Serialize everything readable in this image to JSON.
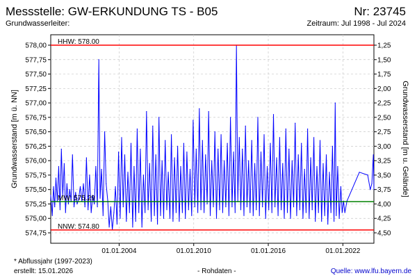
{
  "header": {
    "title": "Messstelle: GW-ERKUNDUNG TS - B05",
    "number": "Nr: 23745",
    "aquifer_label": "Grundwasserleiter:",
    "period": "Zeitraum: Jul 1998 - Jul 2024"
  },
  "footer": {
    "note": "* Abflussjahr (1997-2023)",
    "created": "erstellt:  15.01.2026",
    "raw": "- Rohdaten -",
    "source": "Quelle: www.lfu.bayern.de"
  },
  "colors": {
    "series": "#0000ff",
    "hhw": "#ff0000",
    "nnw": "#ff0000",
    "mw": "#008000",
    "grid": "#c8c8c8"
  },
  "chart_data": {
    "type": "line",
    "ylabel": "Grundwasserstand [m ü. NN]",
    "ylabel_right": "Grundwasserstand [m u. Gelände]",
    "ylim": [
      574.75,
      578.0
    ],
    "xlim": [
      "1998-07-01",
      "2024-07-01"
    ],
    "y_ticks": [
      {
        "v": 578.0,
        "label": "578,00"
      },
      {
        "v": 577.75,
        "label": "577,75"
      },
      {
        "v": 577.5,
        "label": "577,50"
      },
      {
        "v": 577.25,
        "label": "577,25"
      },
      {
        "v": 577.0,
        "label": "577,00"
      },
      {
        "v": 576.75,
        "label": "576,75"
      },
      {
        "v": 576.5,
        "label": "576,50"
      },
      {
        "v": 576.25,
        "label": "576,25"
      },
      {
        "v": 576.0,
        "label": "576,00"
      },
      {
        "v": 575.75,
        "label": "575,75"
      },
      {
        "v": 575.5,
        "label": "575,50"
      },
      {
        "v": 575.25,
        "label": "575,25"
      },
      {
        "v": 575.0,
        "label": "575,00"
      },
      {
        "v": 574.75,
        "label": "574,75"
      }
    ],
    "right_ticks": [
      {
        "v": 578.0,
        "label": "1,25"
      },
      {
        "v": 577.75,
        "label": "1,50"
      },
      {
        "v": 577.5,
        "label": "1,75"
      },
      {
        "v": 577.25,
        "label": "2,00"
      },
      {
        "v": 577.0,
        "label": "2,25"
      },
      {
        "v": 576.75,
        "label": "2,50"
      },
      {
        "v": 576.5,
        "label": "2,75"
      },
      {
        "v": 576.25,
        "label": "3,00"
      },
      {
        "v": 576.0,
        "label": "3,25"
      },
      {
        "v": 575.75,
        "label": "3,50"
      },
      {
        "v": 575.5,
        "label": "3,75"
      },
      {
        "v": 575.25,
        "label": "4,00"
      },
      {
        "v": 575.0,
        "label": "4,25"
      },
      {
        "v": 574.75,
        "label": "4,50"
      }
    ],
    "x_ticks": [
      {
        "date": "2004-01-01",
        "label": "01.01.2004"
      },
      {
        "date": "2010-01-01",
        "label": "01.01.2010"
      },
      {
        "date": "2016-01-01",
        "label": "01.01.2016"
      },
      {
        "date": "2022-01-01",
        "label": "01.01.2022"
      }
    ],
    "reference_lines": [
      {
        "name": "HHW",
        "label": "HHW: 578.00",
        "value": 578.0,
        "color": "#ff0000"
      },
      {
        "name": "MW",
        "label": "MW: 575.29",
        "value": 575.29,
        "color": "#008000"
      },
      {
        "name": "NNW",
        "label": "NNW: 574.80",
        "value": 574.8,
        "color": "#ff0000"
      }
    ],
    "series": [
      {
        "values": [
          {
            "date": "1998-07-01",
            "y": 575.4
          },
          {
            "date": "1998-08-15",
            "y": 575.05
          },
          {
            "date": "1998-09-20",
            "y": 575.55
          },
          {
            "date": "1998-10-25",
            "y": 575.2
          },
          {
            "date": "1998-12-01",
            "y": 575.7
          },
          {
            "date": "1999-01-10",
            "y": 575.3
          },
          {
            "date": "1999-02-20",
            "y": 575.9
          },
          {
            "date": "1999-04-01",
            "y": 575.15
          },
          {
            "date": "1999-05-10",
            "y": 576.2
          },
          {
            "date": "1999-06-20",
            "y": 575.4
          },
          {
            "date": "1999-08-01",
            "y": 575.95
          },
          {
            "date": "1999-09-10",
            "y": 575.1
          },
          {
            "date": "1999-10-20",
            "y": 575.6
          },
          {
            "date": "1999-12-01",
            "y": 575.25
          },
          {
            "date": "2000-01-10",
            "y": 575.5
          },
          {
            "date": "2000-02-20",
            "y": 575.3
          },
          {
            "date": "2000-04-01",
            "y": 576.1
          },
          {
            "date": "2000-05-15",
            "y": 575.2
          },
          {
            "date": "2000-07-01",
            "y": 575.45
          },
          {
            "date": "2000-08-15",
            "y": 575.25
          },
          {
            "date": "2000-10-01",
            "y": 575.35
          },
          {
            "date": "2000-11-15",
            "y": 575.55
          },
          {
            "date": "2001-01-01",
            "y": 575.3
          },
          {
            "date": "2001-02-15",
            "y": 575.6
          },
          {
            "date": "2001-04-01",
            "y": 575.2
          },
          {
            "date": "2001-05-15",
            "y": 576.05
          },
          {
            "date": "2001-07-01",
            "y": 575.15
          },
          {
            "date": "2001-08-15",
            "y": 575.75
          },
          {
            "date": "2001-10-01",
            "y": 575.1
          },
          {
            "date": "2001-11-15",
            "y": 575.4
          },
          {
            "date": "2002-01-01",
            "y": 575.25
          },
          {
            "date": "2002-02-15",
            "y": 575.9
          },
          {
            "date": "2002-04-01",
            "y": 575.2
          },
          {
            "date": "2002-05-15",
            "y": 577.75
          },
          {
            "date": "2002-06-20",
            "y": 575.35
          },
          {
            "date": "2002-08-01",
            "y": 575.85
          },
          {
            "date": "2002-09-15",
            "y": 575.05
          },
          {
            "date": "2002-11-01",
            "y": 576.5
          },
          {
            "date": "2002-12-15",
            "y": 575.6
          },
          {
            "date": "2003-02-01",
            "y": 575.3
          },
          {
            "date": "2003-03-15",
            "y": 574.85
          },
          {
            "date": "2003-05-01",
            "y": 575.2
          },
          {
            "date": "2003-06-15",
            "y": 574.8
          },
          {
            "date": "2003-08-01",
            "y": 575.1
          },
          {
            "date": "2003-09-15",
            "y": 575.55
          },
          {
            "date": "2003-11-01",
            "y": 574.9
          },
          {
            "date": "2003-12-15",
            "y": 576.15
          },
          {
            "date": "2004-02-01",
            "y": 575.0
          },
          {
            "date": "2004-03-15",
            "y": 576.4
          },
          {
            "date": "2004-05-01",
            "y": 575.2
          },
          {
            "date": "2004-06-15",
            "y": 576.1
          },
          {
            "date": "2004-08-01",
            "y": 574.95
          },
          {
            "date": "2004-09-15",
            "y": 575.8
          },
          {
            "date": "2004-11-01",
            "y": 575.1
          },
          {
            "date": "2004-12-15",
            "y": 576.3
          },
          {
            "date": "2005-02-01",
            "y": 574.85
          },
          {
            "date": "2005-03-15",
            "y": 575.9
          },
          {
            "date": "2005-05-01",
            "y": 574.95
          },
          {
            "date": "2005-06-15",
            "y": 576.55
          },
          {
            "date": "2005-08-01",
            "y": 575.1
          },
          {
            "date": "2005-09-15",
            "y": 576.2
          },
          {
            "date": "2005-11-01",
            "y": 574.85
          },
          {
            "date": "2005-12-15",
            "y": 575.75
          },
          {
            "date": "2006-02-01",
            "y": 575.1
          },
          {
            "date": "2006-03-15",
            "y": 576.85
          },
          {
            "date": "2006-05-01",
            "y": 575.15
          },
          {
            "date": "2006-06-15",
            "y": 575.95
          },
          {
            "date": "2006-08-01",
            "y": 574.95
          },
          {
            "date": "2006-09-15",
            "y": 576.6
          },
          {
            "date": "2006-11-01",
            "y": 575.05
          },
          {
            "date": "2006-12-15",
            "y": 576.1
          },
          {
            "date": "2007-02-01",
            "y": 574.9
          },
          {
            "date": "2007-03-15",
            "y": 576.75
          },
          {
            "date": "2007-05-01",
            "y": 575.05
          },
          {
            "date": "2007-06-15",
            "y": 576.0
          },
          {
            "date": "2007-08-01",
            "y": 575.0
          },
          {
            "date": "2007-09-15",
            "y": 576.35
          },
          {
            "date": "2007-11-01",
            "y": 575.15
          },
          {
            "date": "2007-12-15",
            "y": 575.8
          },
          {
            "date": "2008-02-01",
            "y": 575.0
          },
          {
            "date": "2008-03-15",
            "y": 576.45
          },
          {
            "date": "2008-05-01",
            "y": 574.95
          },
          {
            "date": "2008-06-15",
            "y": 576.05
          },
          {
            "date": "2008-08-01",
            "y": 575.1
          },
          {
            "date": "2008-09-15",
            "y": 576.25
          },
          {
            "date": "2008-11-01",
            "y": 574.95
          },
          {
            "date": "2008-12-15",
            "y": 575.9
          },
          {
            "date": "2009-02-01",
            "y": 575.1
          },
          {
            "date": "2009-03-15",
            "y": 576.3
          },
          {
            "date": "2009-05-01",
            "y": 575.0
          },
          {
            "date": "2009-06-15",
            "y": 576.15
          },
          {
            "date": "2009-08-01",
            "y": 575.15
          },
          {
            "date": "2009-09-15",
            "y": 575.85
          },
          {
            "date": "2009-11-01",
            "y": 575.05
          },
          {
            "date": "2009-12-15",
            "y": 576.7
          },
          {
            "date": "2010-02-01",
            "y": 575.2
          },
          {
            "date": "2010-03-15",
            "y": 576.2
          },
          {
            "date": "2010-05-01",
            "y": 575.1
          },
          {
            "date": "2010-06-15",
            "y": 576.9
          },
          {
            "date": "2010-08-01",
            "y": 575.15
          },
          {
            "date": "2010-09-15",
            "y": 576.35
          },
          {
            "date": "2010-11-01",
            "y": 575.1
          },
          {
            "date": "2010-12-15",
            "y": 576.1
          },
          {
            "date": "2011-02-01",
            "y": 575.25
          },
          {
            "date": "2011-03-15",
            "y": 576.85
          },
          {
            "date": "2011-05-01",
            "y": 575.05
          },
          {
            "date": "2011-06-15",
            "y": 576.0
          },
          {
            "date": "2011-08-01",
            "y": 575.2
          },
          {
            "date": "2011-09-15",
            "y": 576.5
          },
          {
            "date": "2011-11-01",
            "y": 575.0
          },
          {
            "date": "2011-12-15",
            "y": 576.2
          },
          {
            "date": "2012-02-01",
            "y": 575.15
          },
          {
            "date": "2012-03-15",
            "y": 576.45
          },
          {
            "date": "2012-05-01",
            "y": 575.1
          },
          {
            "date": "2012-06-15",
            "y": 576.0
          },
          {
            "date": "2012-08-01",
            "y": 575.2
          },
          {
            "date": "2012-09-15",
            "y": 576.3
          },
          {
            "date": "2012-11-01",
            "y": 575.05
          },
          {
            "date": "2012-12-15",
            "y": 576.75
          },
          {
            "date": "2013-02-01",
            "y": 575.2
          },
          {
            "date": "2013-03-15",
            "y": 576.15
          },
          {
            "date": "2013-05-01",
            "y": 575.1
          },
          {
            "date": "2013-06-10",
            "y": 578.0
          },
          {
            "date": "2013-07-20",
            "y": 575.3
          },
          {
            "date": "2013-09-01",
            "y": 576.4
          },
          {
            "date": "2013-10-15",
            "y": 575.15
          },
          {
            "date": "2013-12-01",
            "y": 576.2
          },
          {
            "date": "2014-01-15",
            "y": 575.05
          },
          {
            "date": "2014-03-01",
            "y": 576.6
          },
          {
            "date": "2014-04-15",
            "y": 575.2
          },
          {
            "date": "2014-06-01",
            "y": 576.0
          },
          {
            "date": "2014-07-15",
            "y": 575.1
          },
          {
            "date": "2014-09-01",
            "y": 576.35
          },
          {
            "date": "2014-10-15",
            "y": 575.05
          },
          {
            "date": "2014-12-01",
            "y": 575.95
          },
          {
            "date": "2015-01-15",
            "y": 575.15
          },
          {
            "date": "2015-03-01",
            "y": 576.75
          },
          {
            "date": "2015-04-15",
            "y": 575.05
          },
          {
            "date": "2015-06-01",
            "y": 576.15
          },
          {
            "date": "2015-07-15",
            "y": 575.2
          },
          {
            "date": "2015-09-01",
            "y": 576.45
          },
          {
            "date": "2015-10-15",
            "y": 575.0
          },
          {
            "date": "2015-12-01",
            "y": 575.9
          },
          {
            "date": "2016-01-15",
            "y": 575.15
          },
          {
            "date": "2016-03-01",
            "y": 576.3
          },
          {
            "date": "2016-04-15",
            "y": 575.1
          },
          {
            "date": "2016-06-01",
            "y": 576.8
          },
          {
            "date": "2016-07-15",
            "y": 575.2
          },
          {
            "date": "2016-09-01",
            "y": 576.05
          },
          {
            "date": "2016-10-15",
            "y": 575.05
          },
          {
            "date": "2016-12-01",
            "y": 576.4
          },
          {
            "date": "2017-01-15",
            "y": 575.15
          },
          {
            "date": "2017-03-01",
            "y": 575.95
          },
          {
            "date": "2017-04-15",
            "y": 575.0
          },
          {
            "date": "2017-06-01",
            "y": 576.55
          },
          {
            "date": "2017-07-15",
            "y": 575.1
          },
          {
            "date": "2017-09-01",
            "y": 576.2
          },
          {
            "date": "2017-10-15",
            "y": 575.0
          },
          {
            "date": "2017-12-01",
            "y": 576.0
          },
          {
            "date": "2018-01-15",
            "y": 575.2
          },
          {
            "date": "2018-03-01",
            "y": 576.65
          },
          {
            "date": "2018-04-15",
            "y": 575.05
          },
          {
            "date": "2018-06-01",
            "y": 576.1
          },
          {
            "date": "2018-07-15",
            "y": 575.15
          },
          {
            "date": "2018-09-01",
            "y": 576.3
          },
          {
            "date": "2018-10-15",
            "y": 575.0
          },
          {
            "date": "2018-12-01",
            "y": 575.85
          },
          {
            "date": "2019-01-15",
            "y": 575.1
          },
          {
            "date": "2019-03-01",
            "y": 576.55
          },
          {
            "date": "2019-04-15",
            "y": 575.0
          },
          {
            "date": "2019-06-01",
            "y": 576.05
          },
          {
            "date": "2019-07-15",
            "y": 575.15
          },
          {
            "date": "2019-09-01",
            "y": 576.4
          },
          {
            "date": "2019-10-15",
            "y": 574.95
          },
          {
            "date": "2019-12-01",
            "y": 575.9
          },
          {
            "date": "2020-01-15",
            "y": 575.1
          },
          {
            "date": "2020-03-01",
            "y": 576.35
          },
          {
            "date": "2020-04-15",
            "y": 574.95
          },
          {
            "date": "2020-06-01",
            "y": 575.95
          },
          {
            "date": "2020-07-15",
            "y": 575.05
          },
          {
            "date": "2020-09-01",
            "y": 576.1
          },
          {
            "date": "2020-10-15",
            "y": 574.9
          },
          {
            "date": "2020-12-01",
            "y": 575.8
          },
          {
            "date": "2021-01-15",
            "y": 575.1
          },
          {
            "date": "2021-03-01",
            "y": 576.25
          },
          {
            "date": "2021-04-15",
            "y": 574.95
          },
          {
            "date": "2021-05-20",
            "y": 577.0
          },
          {
            "date": "2021-06-20",
            "y": 575.05
          },
          {
            "date": "2021-08-01",
            "y": 575.9
          },
          {
            "date": "2021-09-15",
            "y": 575.0
          },
          {
            "date": "2021-11-01",
            "y": 575.55
          },
          {
            "date": "2021-12-10",
            "y": 575.1
          },
          {
            "date": "2022-01-20",
            "y": 575.3
          },
          {
            "date": "2022-03-01",
            "y": 575.1
          },
          {
            "date": "2022-05-01",
            "y": 575.3
          },
          {
            "date": "2023-05-01",
            "y": 575.8
          },
          {
            "date": "2024-01-01",
            "y": 575.75
          },
          {
            "date": "2024-03-15",
            "y": 575.5
          },
          {
            "date": "2024-05-01",
            "y": 575.6
          },
          {
            "date": "2024-06-15",
            "y": 576.1
          },
          {
            "date": "2024-07-01",
            "y": 575.5
          }
        ]
      }
    ]
  }
}
